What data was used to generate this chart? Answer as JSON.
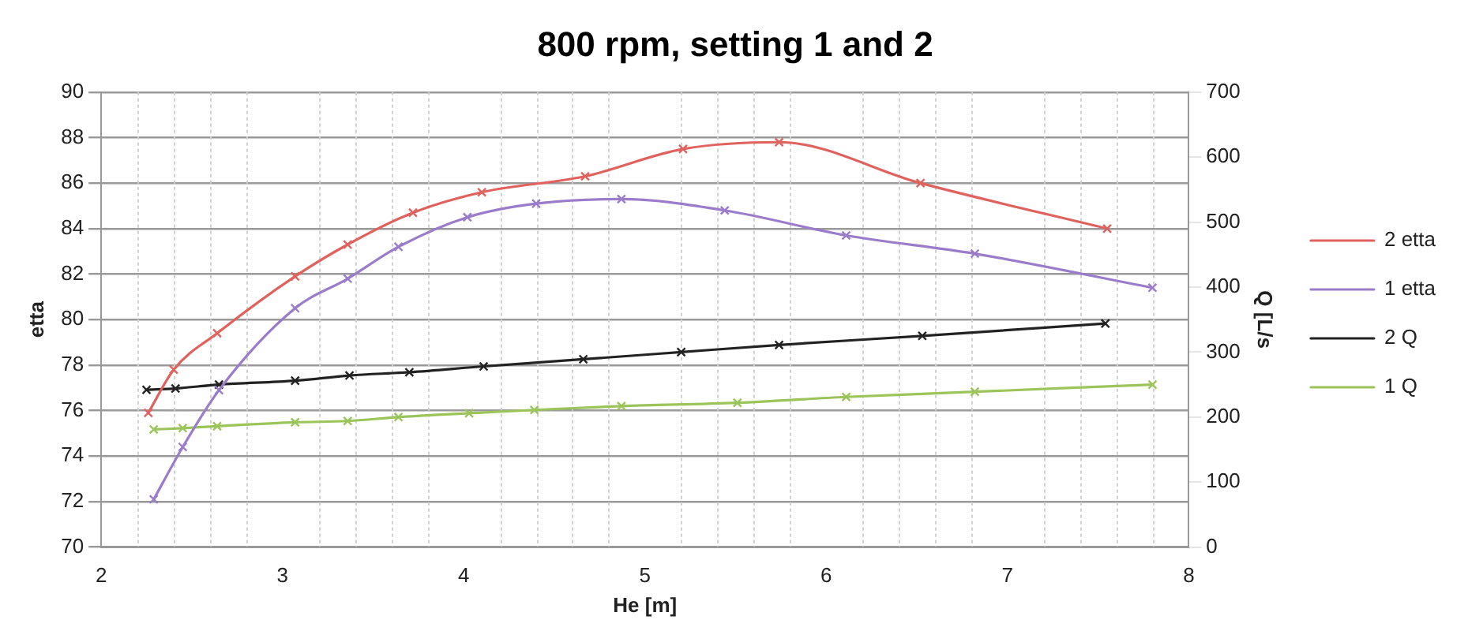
{
  "chart_data": {
    "type": "line",
    "title": "800 rpm, setting 1 and 2",
    "xlabel": "He [m]",
    "ylabel": "etta",
    "y2label": "Q [L/s",
    "xlim": [
      2,
      8
    ],
    "xticks": [
      2,
      3,
      4,
      5,
      6,
      7,
      8
    ],
    "ylim": [
      70,
      90
    ],
    "yticks": [
      70,
      72,
      74,
      76,
      78,
      80,
      82,
      84,
      86,
      88,
      90
    ],
    "y2lim": [
      0,
      700
    ],
    "y2ticks": [
      0,
      100,
      200,
      300,
      400,
      500,
      600,
      700
    ],
    "grid": true,
    "legend": "right",
    "marker": "cross",
    "line_style": "solid",
    "series": [
      {
        "name": "2 etta",
        "color": "#e0625e",
        "x": [
          2.26,
          2.4,
          2.64,
          3.07,
          3.36,
          3.72,
          4.1,
          4.67,
          5.21,
          5.74,
          6.52,
          7.55
        ],
        "values": [
          75.9,
          77.8,
          79.4,
          81.9,
          83.3,
          84.7,
          85.6,
          86.3,
          87.5,
          87.8,
          86,
          84
        ]
      },
      {
        "name": "1 etta",
        "color": "#9b7ccb",
        "x": [
          2.29,
          2.45,
          2.65,
          3.07,
          3.36,
          3.64,
          4.02,
          4.4,
          4.87,
          5.44,
          6.11,
          6.82,
          7.8
        ],
        "values": [
          72.1,
          74.4,
          76.9,
          80.5,
          81.8,
          83.2,
          84.5,
          85.1,
          85.3,
          84.8,
          83.7,
          82.9,
          81.4
        ]
      },
      {
        "name": "2 Q",
        "color": "#222222",
        "axis": "y2",
        "x": [
          2.25,
          2.41,
          2.65,
          3.07,
          3.37,
          3.7,
          4.11,
          4.66,
          5.2,
          5.74,
          6.53,
          7.54
        ],
        "values": [
          242,
          244,
          250,
          256,
          264,
          269,
          278,
          289,
          300,
          311,
          325,
          344
        ]
      },
      {
        "name": "1 Q",
        "color": "#9bc45a",
        "axis": "y2",
        "x": [
          2.29,
          2.45,
          2.64,
          3.07,
          3.36,
          3.64,
          4.03,
          4.39,
          4.87,
          5.51,
          6.11,
          6.82,
          7.8
        ],
        "values": [
          181,
          183,
          186,
          192,
          194,
          200,
          206,
          211,
          217,
          222,
          231,
          239,
          250
        ]
      }
    ]
  }
}
